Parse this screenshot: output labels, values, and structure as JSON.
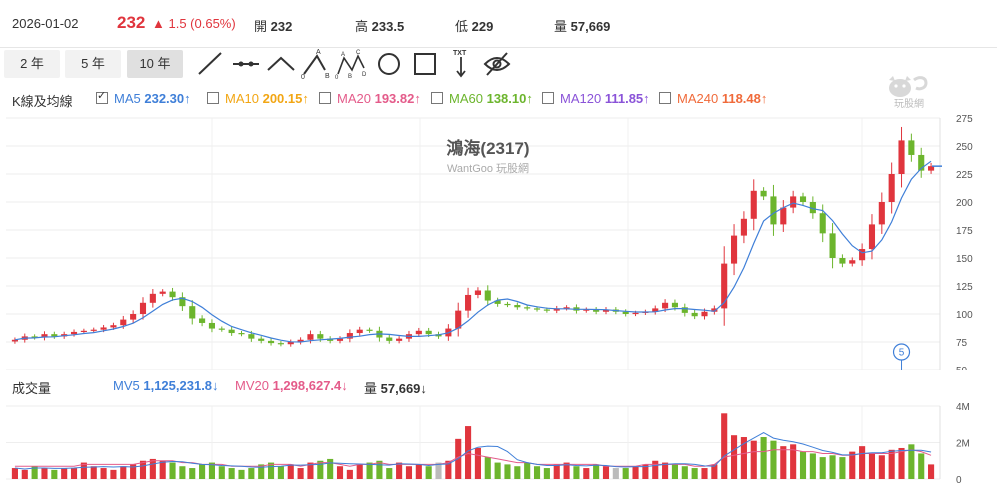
{
  "quote": {
    "date": "2026-01-02",
    "price": "232",
    "change": "▲ 1.5 (0.65%)",
    "open_label": "開",
    "open_value": "232",
    "high_label": "高",
    "high_value": "233.5",
    "low_label": "低",
    "low_value": "229",
    "volume_label": "量",
    "volume_value": "57,669"
  },
  "range_buttons": [
    "2 年",
    "5 年",
    "10 年"
  ],
  "active_range": "10 年",
  "tools": [
    "line-tool-icon",
    "ray-tool-icon",
    "wedge-tool-icon",
    "abcd-pattern-icon",
    "xabcd-pattern-icon",
    "circle-tool-icon",
    "rect-tool-icon",
    "text-tool-icon",
    "hide-drawings-icon"
  ],
  "ma_legend": {
    "label": "K線及均線",
    "items": [
      {
        "name": "MA5",
        "value": "232.30",
        "arrow": "↑",
        "checked": true,
        "color": "#3f7fd8"
      },
      {
        "name": "MA10",
        "value": "200.15",
        "arrow": "↑",
        "checked": false,
        "color": "#f2a614"
      },
      {
        "name": "MA20",
        "value": "193.82",
        "arrow": "↑",
        "checked": false,
        "color": "#e45b8a"
      },
      {
        "name": "MA60",
        "value": "138.10",
        "arrow": "↑",
        "checked": false,
        "color": "#6cb52d"
      },
      {
        "name": "MA120",
        "value": "111.85",
        "arrow": "↑",
        "checked": false,
        "color": "#8a53d8"
      },
      {
        "name": "MA240",
        "value": "118.48",
        "arrow": "↑",
        "checked": false,
        "color": "#f06a3a"
      }
    ]
  },
  "chart_title": "鴻海(2317)",
  "watermark": "WantGoo 玩股網",
  "logo_text": "玩股網",
  "event_marker": "5",
  "volume_legend": {
    "label": "成交量",
    "mv5_label": "MV5",
    "mv5_value": "1,125,231.8",
    "mv5_arrow": "↓",
    "mv20_label": "MV20",
    "mv20_value": "1,298,627.4",
    "mv20_arrow": "↓",
    "vol_label": "量",
    "vol_value": "57,669",
    "vol_arrow": "↓"
  },
  "colors": {
    "up": "#e0353d",
    "down": "#6cb52d",
    "flat": "#bbbbbb",
    "ma5": "#3f7fd8",
    "mv20": "#e45b8a"
  },
  "chart_data": [
    {
      "type": "candlestick",
      "title": "鴻海(2317)",
      "ylim": [
        50,
        275
      ],
      "yticks": [
        50,
        75,
        100,
        125,
        150,
        175,
        200,
        225,
        250,
        275
      ],
      "monthly_close": [
        77,
        80,
        79,
        82,
        80,
        82,
        84,
        85,
        86,
        88,
        90,
        95,
        100,
        110,
        118,
        120,
        115,
        107,
        96,
        92,
        87,
        86,
        83,
        82,
        78,
        76,
        74,
        73,
        75,
        77,
        82,
        78,
        76,
        78,
        83,
        86,
        85,
        79,
        76,
        78,
        82,
        85,
        82,
        80,
        87,
        103,
        117,
        121,
        112,
        109,
        108,
        106,
        105,
        104,
        103,
        105,
        106,
        103,
        104,
        102,
        104,
        102,
        100,
        101,
        102,
        105,
        110,
        106,
        101,
        98,
        102,
        105,
        145,
        170,
        185,
        210,
        205,
        180,
        195,
        205,
        200,
        190,
        172,
        150,
        145,
        148,
        158,
        180,
        200,
        225,
        255,
        242,
        228,
        232
      ],
      "ma5_label": "MA5"
    },
    {
      "type": "bar",
      "title": "成交量",
      "ylim": [
        0,
        4
      ],
      "yticks": [
        "0",
        "2M",
        "4M"
      ],
      "series": [
        {
          "name": "量",
          "values_m": [
            0.6,
            0.5,
            0.7,
            0.6,
            0.5,
            0.6,
            0.6,
            0.9,
            0.7,
            0.6,
            0.5,
            0.7,
            0.8,
            1.0,
            1.1,
            1.0,
            0.9,
            0.7,
            0.6,
            0.8,
            0.9,
            0.7,
            0.6,
            0.5,
            0.6,
            0.8,
            0.9,
            0.7,
            0.8,
            0.6,
            0.9,
            1.0,
            1.1,
            0.7,
            0.5,
            0.8,
            0.9,
            1.0,
            0.6,
            0.9,
            0.7,
            0.8,
            0.7,
            0.9,
            1.0,
            2.2,
            2.9,
            1.7,
            1.2,
            0.9,
            0.8,
            0.7,
            0.9,
            0.7,
            0.6,
            0.8,
            0.9,
            0.7,
            0.6,
            0.8,
            0.7,
            0.6,
            0.6,
            0.7,
            0.8,
            1.0,
            0.9,
            0.8,
            0.7,
            0.6,
            0.6,
            0.8,
            3.6,
            2.4,
            2.3,
            2.1,
            2.3,
            2.1,
            1.8,
            1.9,
            1.5,
            1.4,
            1.2,
            1.3,
            1.2,
            1.5,
            1.8,
            1.4,
            1.3,
            1.6,
            1.7,
            1.9,
            1.4,
            0.8
          ]
        },
        {
          "name": "MV20",
          "values_m": [
            0.7,
            0.7,
            0.7,
            0.7,
            0.7,
            0.7,
            0.7,
            0.8,
            0.8,
            0.8,
            0.8,
            0.8,
            0.8,
            0.9,
            1.0,
            1.0,
            1.0,
            0.9,
            0.9,
            0.8,
            0.8,
            0.8,
            0.7,
            0.7,
            0.7,
            0.7,
            0.8,
            0.8,
            0.8,
            0.7,
            0.8,
            0.9,
            0.9,
            0.8,
            0.7,
            0.8,
            0.8,
            0.9,
            0.8,
            0.8,
            0.8,
            0.8,
            0.8,
            0.8,
            0.9,
            1.2,
            1.4,
            1.3,
            1.2,
            1.1,
            1.0,
            0.9,
            0.9,
            0.8,
            0.8,
            0.8,
            0.8,
            0.8,
            0.8,
            0.8,
            0.7,
            0.7,
            0.7,
            0.7,
            0.8,
            0.8,
            0.8,
            0.8,
            0.8,
            0.7,
            0.7,
            0.8,
            1.2,
            1.3,
            1.4,
            1.5,
            1.5,
            1.6,
            1.6,
            1.6,
            1.5,
            1.5,
            1.4,
            1.4,
            1.3,
            1.3,
            1.4,
            1.4,
            1.4,
            1.4,
            1.5,
            1.6,
            1.5,
            1.3
          ]
        }
      ]
    }
  ]
}
